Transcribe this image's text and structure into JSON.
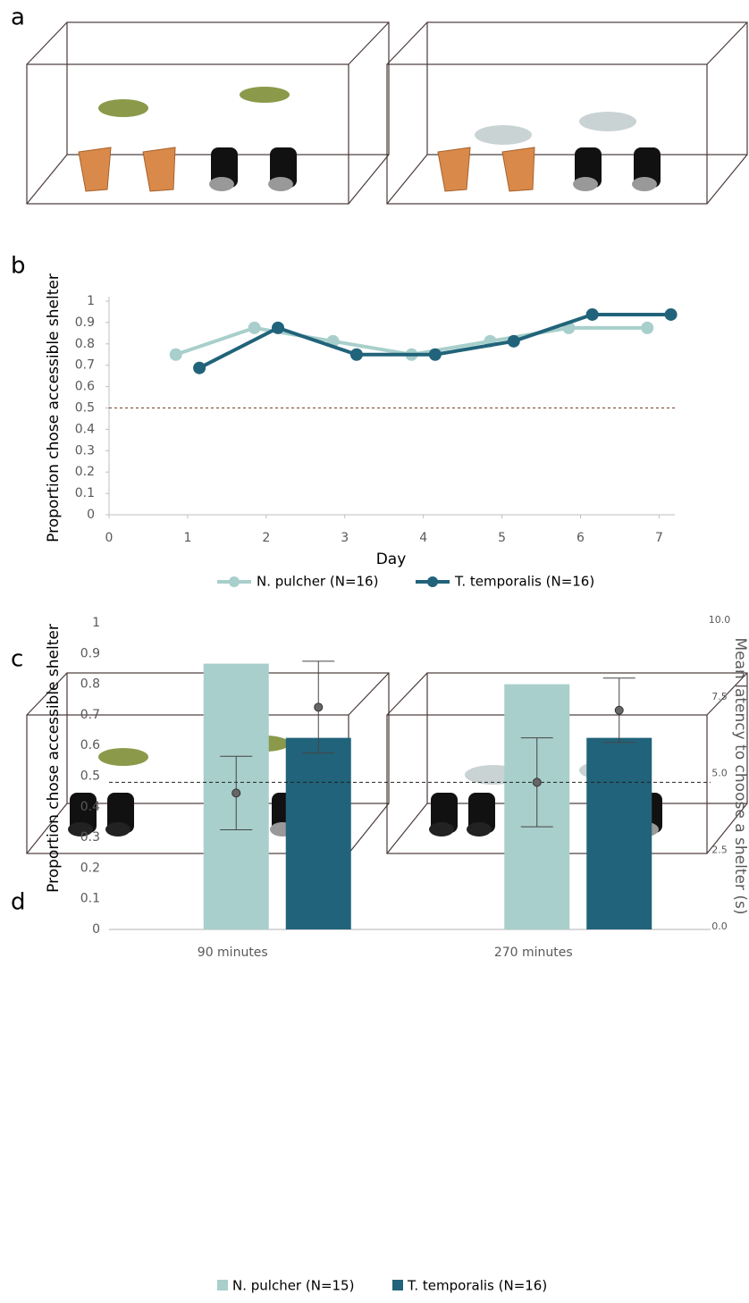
{
  "panel_labels": [
    "a",
    "b",
    "c",
    "d"
  ],
  "chart_data": [
    {
      "type": "line",
      "xlabel": "Day",
      "ylabel": "Proportion chose accessible shelter",
      "xlim": [
        0,
        7.2
      ],
      "xticks": [
        0,
        1,
        2,
        3,
        4,
        5,
        6,
        7
      ],
      "ylim": [
        0,
        1
      ],
      "yticks": [
        0,
        0.1,
        0.2,
        0.3,
        0.4,
        0.5,
        0.6,
        0.7,
        0.8,
        0.9,
        1
      ],
      "reference_line": 0.5,
      "series": [
        {
          "name": "N. pulcher (N=16)",
          "color": "#a8cfcb",
          "x": [
            0.85,
            1.85,
            2.85,
            3.85,
            4.85,
            5.85,
            6.85
          ],
          "values": [
            0.75,
            0.875,
            0.8125,
            0.75,
            0.8125,
            0.875,
            0.875
          ]
        },
        {
          "name": "T. temporalis (N=16)",
          "color": "#21637a",
          "x": [
            1.15,
            2.15,
            3.15,
            4.15,
            5.15,
            6.15,
            7.15
          ],
          "values": [
            0.6875,
            0.875,
            0.75,
            0.75,
            0.8125,
            0.9375,
            0.9375
          ]
        }
      ]
    },
    {
      "type": "bar",
      "ylabel": "Proportion chose accessible shelter",
      "y2label": "Mean latency to choose a shelter (s)",
      "categories": [
        "90 minutes",
        "270 minutes"
      ],
      "ylim": [
        0,
        1
      ],
      "yticks": [
        0,
        0.1,
        0.2,
        0.3,
        0.4,
        0.5,
        0.6,
        0.7,
        0.8,
        0.9,
        1
      ],
      "y2lim": [
        0,
        10
      ],
      "y2ticks": [
        {
          "value": 0,
          "label": "0.0"
        },
        {
          "value": 2.5,
          "label": "2.5"
        },
        {
          "value": 5,
          "label": "5.0"
        },
        {
          "value": 7.5,
          "label": "7.5"
        },
        {
          "value": 10,
          "label": "10.0"
        }
      ],
      "reference_line": 0.48,
      "series": [
        {
          "name": "N. pulcher (N=15)",
          "color": "#a8cfcb",
          "values": [
            0.867,
            0.8
          ],
          "latency": [
            4.45,
            4.8
          ],
          "latency_error": [
            1.2,
            1.45
          ]
        },
        {
          "name": "T. temporalis (N=16)",
          "color": "#21637a",
          "values": [
            0.625,
            0.625
          ],
          "latency": [
            7.25,
            7.15
          ],
          "latency_error": [
            1.5,
            1.05
          ]
        }
      ]
    }
  ]
}
